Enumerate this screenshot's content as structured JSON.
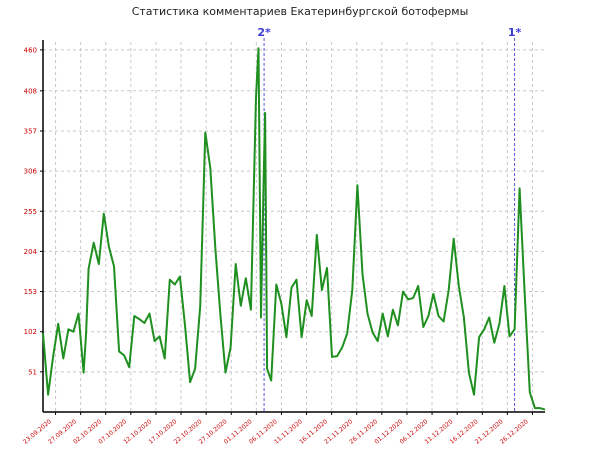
{
  "chart_data": {
    "type": "line",
    "title": "Статистика комментариев Екатеринбургской ботофермы",
    "xlabel": "",
    "ylabel": "",
    "ylim": [
      0,
      470
    ],
    "y_ticks": [
      51,
      102,
      153,
      204,
      255,
      306,
      357,
      408,
      460
    ],
    "x_ticks": [
      "23.09.2020",
      "27.09.2020",
      "02.10.2020",
      "07.10.2020",
      "12.10.2020",
      "17.10.2020",
      "22.10.2020",
      "27.10.2020",
      "01.11.2020",
      "06.11.2020",
      "11.11.2020",
      "16.11.2020",
      "21.11.2020",
      "26.11.2020",
      "01.12.2020",
      "06.12.2020",
      "11.12.2020",
      "16.12.2020",
      "21.12.2020",
      "26.12.2020"
    ],
    "grid": true,
    "color": "#1f8f1f",
    "markers": [
      {
        "label": "2*",
        "x": 43.6
      },
      {
        "label": "1*",
        "x": 93.0
      }
    ],
    "series": [
      {
        "x": [
          0,
          1,
          2,
          3,
          4,
          5,
          6,
          7,
          8,
          8.5,
          9,
          10,
          11,
          12,
          13,
          14,
          15,
          16,
          17,
          18,
          19,
          20,
          21,
          22,
          23,
          24,
          25,
          26,
          27,
          28,
          29,
          30,
          31,
          32,
          33,
          34,
          35,
          36,
          37,
          38,
          39,
          40,
          41,
          42,
          42.5,
          43,
          43.5,
          43.8,
          44.2,
          45,
          46,
          47,
          48,
          49,
          50,
          51,
          52,
          53,
          54,
          55,
          56,
          57,
          58,
          59,
          60,
          61,
          62,
          63,
          64,
          65,
          66,
          67,
          68,
          69,
          70,
          71,
          72,
          73,
          74,
          75,
          76,
          77,
          78,
          79,
          80,
          81,
          82,
          83,
          84,
          85,
          86,
          87,
          88,
          89,
          90,
          91,
          92,
          93,
          94,
          95,
          96,
          97,
          98,
          99
        ],
        "values": [
          100,
          22,
          70,
          112,
          68,
          105,
          102,
          125,
          50,
          100,
          182,
          215,
          188,
          252,
          210,
          185,
          77,
          72,
          57,
          122,
          118,
          113,
          125,
          90,
          96,
          68,
          168,
          162,
          172,
          110,
          38,
          55,
          134,
          355,
          310,
          207,
          122,
          50,
          82,
          188,
          135,
          170,
          130,
          400,
          462,
          120,
          292,
          380,
          55,
          40,
          162,
          138,
          95,
          158,
          168,
          95,
          142,
          122,
          225,
          155,
          183,
          70,
          71,
          82,
          100,
          155,
          288,
          175,
          125,
          101,
          90,
          125,
          96,
          130,
          110,
          153,
          143,
          145,
          160,
          108,
          122,
          150,
          122,
          115,
          155,
          220,
          160,
          120,
          50,
          22,
          95,
          105,
          120,
          88,
          112,
          160,
          96,
          105,
          284,
          150,
          25,
          5,
          5,
          3
        ]
      }
    ]
  }
}
